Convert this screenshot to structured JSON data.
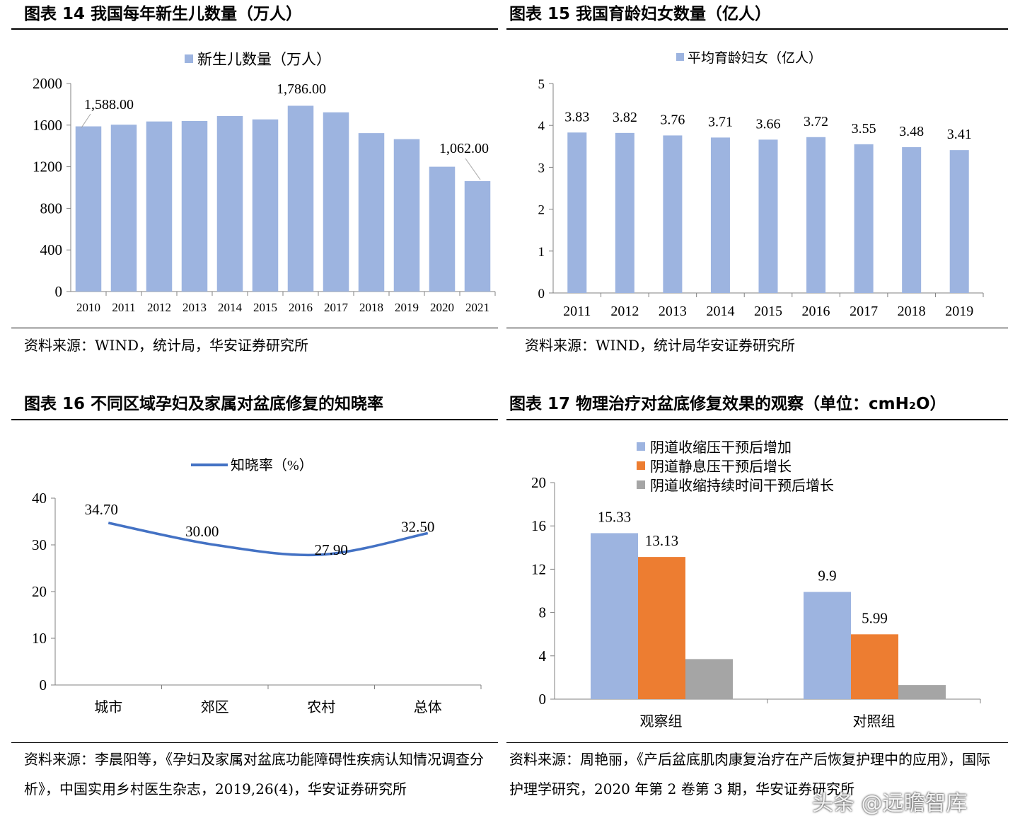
{
  "panels": [
    {
      "title": "图表 14 我国每年新生儿数量（万人）",
      "source": "资料来源：WIND，统计局，华安证券研究所"
    },
    {
      "title": "图表 15 我国育龄妇女数量（亿人）",
      "source": "资料来源：WIND，统计局华安证券研究所"
    },
    {
      "title": "图表 16 不同区域孕妇及家属对盆底修复的知晓率",
      "source": "资料来源：李晨阳等，《孕妇及家属对盆底功能障碍性疾病认知情况调查分析》，中国实用乡村医生杂志，2019,26(4)，华安证券研究所"
    },
    {
      "title": "图表 17 物理治疗对盆底修复效果的观察（单位：cmH₂O）",
      "source": "资料来源：周艳丽，《产后盆底肌肉康复治疗在产后恢复护理中的应用》，国际护理学研究，2020 年第 2 卷第 3 期，华安证券研究所"
    }
  ],
  "watermark": "头条 @远瞻智库",
  "colors": {
    "blue": "#9DB4E0",
    "orange": "#ED7D31",
    "gray": "#A5A5A5",
    "line": "#4472C4"
  },
  "chart_data": [
    {
      "type": "bar",
      "legend": "新生儿数量（万人）",
      "legend_position": "top",
      "categories": [
        "2010",
        "2011",
        "2012",
        "2013",
        "2014",
        "2015",
        "2016",
        "2017",
        "2018",
        "2019",
        "2020",
        "2021"
      ],
      "values": [
        1588,
        1604,
        1635,
        1640,
        1687,
        1655,
        1786,
        1723,
        1523,
        1465,
        1200,
        1062
      ],
      "data_labels": [
        {
          "index": 0,
          "text": "1,588.00"
        },
        {
          "index": 6,
          "text": "1,786.00"
        },
        {
          "index": 11,
          "text": "1,062.00"
        }
      ],
      "yticks": [
        "0",
        "400",
        "800",
        "1200",
        "1600",
        "2000"
      ],
      "ylim": [
        0,
        2000
      ],
      "grid": false
    },
    {
      "type": "bar",
      "legend": "平均育龄妇女（亿人）",
      "legend_position": "top",
      "categories": [
        "2011",
        "2012",
        "2013",
        "2014",
        "2015",
        "2016",
        "2017",
        "2018",
        "2019"
      ],
      "values": [
        3.83,
        3.82,
        3.76,
        3.71,
        3.66,
        3.72,
        3.55,
        3.48,
        3.41
      ],
      "data_labels": [
        "3.83",
        "3.82",
        "3.76",
        "3.71",
        "3.66",
        "3.72",
        "3.55",
        "3.48",
        "3.41"
      ],
      "yticks": [
        "0",
        "1",
        "2",
        "3",
        "4",
        "5"
      ],
      "ylim": [
        0,
        5
      ],
      "grid": false
    },
    {
      "type": "line",
      "legend": "知晓率（%）",
      "legend_position": "top",
      "categories": [
        "城市",
        "郊区",
        "农村",
        "总体"
      ],
      "values": [
        34.7,
        30.0,
        27.9,
        32.5
      ],
      "data_labels": [
        "34.70",
        "30.00",
        "27.90",
        "32.50"
      ],
      "yticks": [
        "0",
        "10",
        "20",
        "30",
        "40"
      ],
      "ylim": [
        0,
        40
      ],
      "grid": false
    },
    {
      "type": "bar",
      "legend_position": "top",
      "categories": [
        "观察组",
        "对照组"
      ],
      "series": [
        {
          "name": "阴道收缩压干预后增加",
          "values": [
            15.33,
            9.9
          ],
          "labels": [
            "15.33",
            "9.9"
          ],
          "color": "#9DB4E0"
        },
        {
          "name": "阴道静息压干预后增长",
          "values": [
            13.13,
            5.99
          ],
          "labels": [
            "13.13",
            "5.99"
          ],
          "color": "#ED7D31"
        },
        {
          "name": "阴道收缩持续时间干预后增长",
          "values": [
            3.7,
            1.3
          ],
          "labels": [
            "",
            ""
          ],
          "color": "#A5A5A5"
        }
      ],
      "yticks": [
        "0",
        "4",
        "8",
        "12",
        "16",
        "20"
      ],
      "ylim": [
        0,
        20
      ],
      "grid": false
    }
  ]
}
